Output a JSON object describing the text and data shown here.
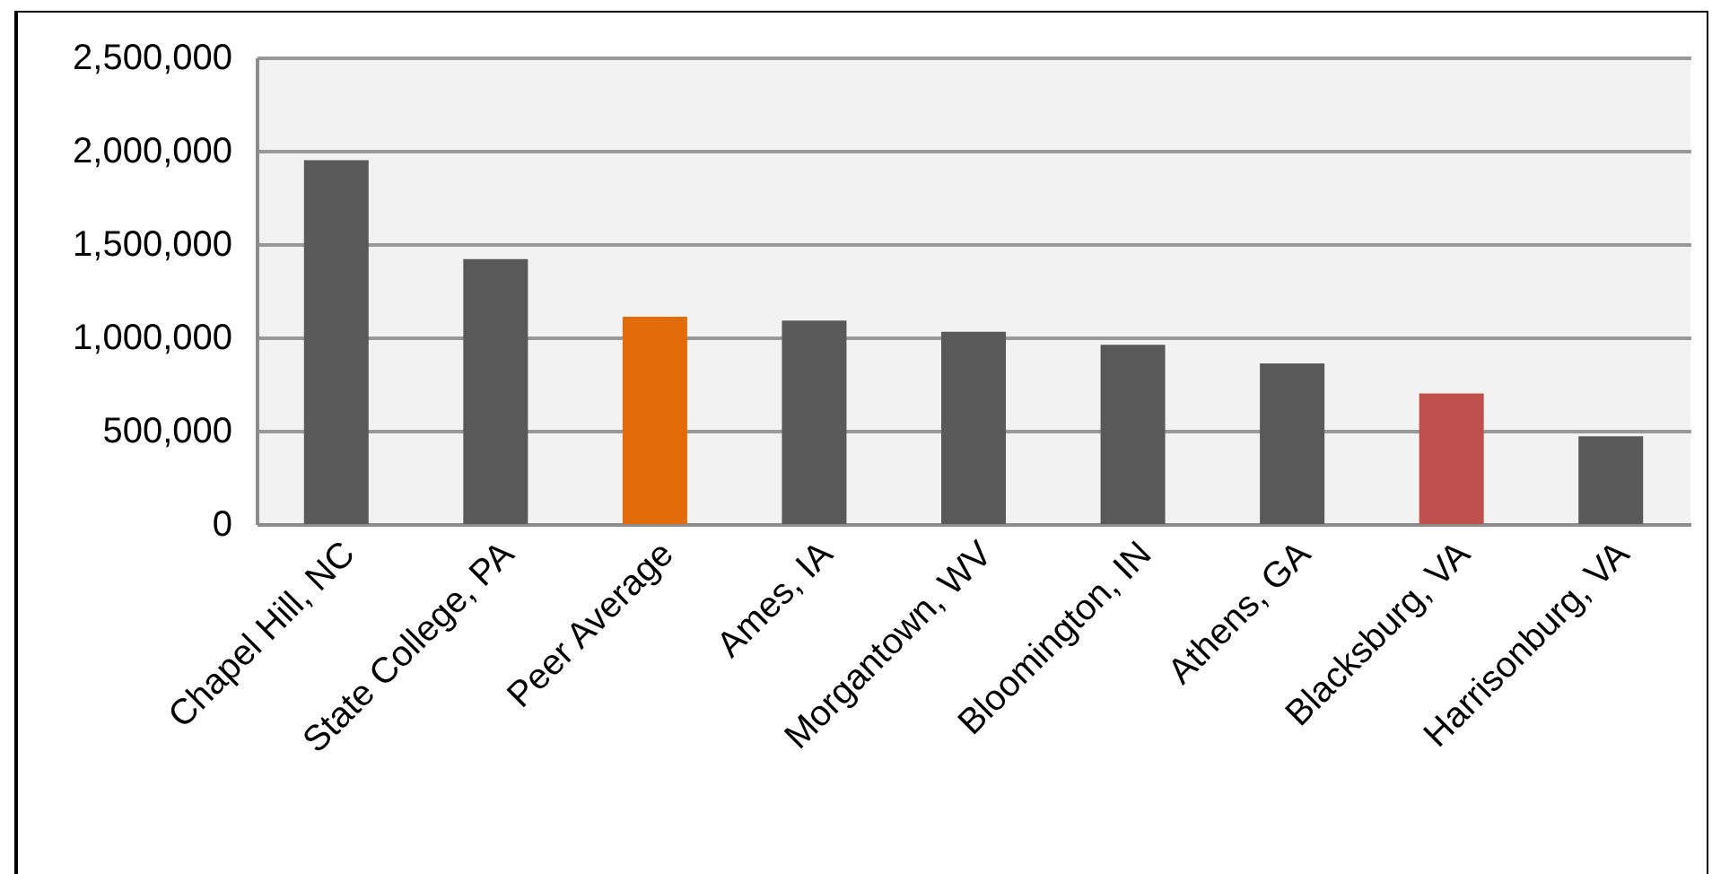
{
  "chart_data": {
    "type": "bar",
    "categories": [
      "Chapel Hill, NC",
      "State College, PA",
      "Peer Average",
      "Ames, IA",
      "Morgantown, WV",
      "Bloomington, IN",
      "Athens, GA",
      "Blacksburg, VA",
      "Harrisonburg, VA"
    ],
    "values": [
      1950000,
      1420000,
      1110000,
      1090000,
      1030000,
      960000,
      860000,
      700000,
      470000
    ],
    "colors": [
      "#595959",
      "#595959",
      "#e36c0a",
      "#595959",
      "#595959",
      "#595959",
      "#595959",
      "#c0504d",
      "#595959"
    ],
    "ylim": [
      0,
      2500000
    ],
    "yticks": [
      0,
      {
        "value": 500000,
        "label": "500,000"
      },
      {
        "value": 1000000,
        "label": "1,000,000"
      },
      {
        "value": 1500000,
        "label": "1,500,000"
      },
      {
        "value": 2000000,
        "label": "2,000,000"
      },
      {
        "value": 2500000,
        "label": "2,500,000"
      }
    ],
    "grid": "y"
  }
}
